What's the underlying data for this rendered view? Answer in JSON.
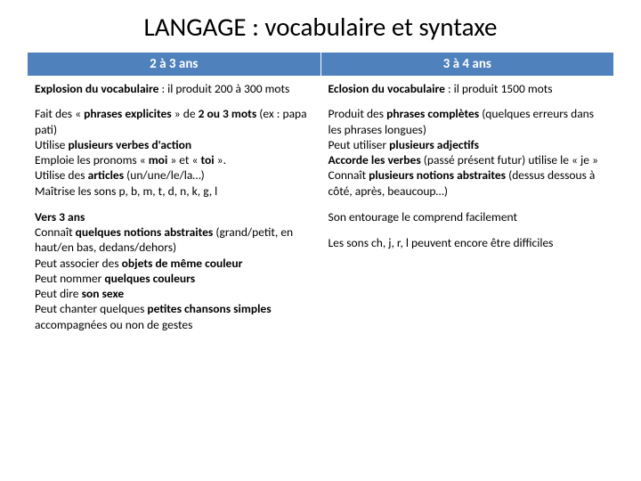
{
  "title": "LANGAGE : vocabulaire et syntaxe",
  "headers": {
    "col1": "2 à 3 ans",
    "col2": "3 à 4 ans"
  },
  "cells": {
    "r1c1_a": "Explosion du vocabulaire",
    "r1c1_b": " : il produit 200 à 300 mots",
    "r1c2_a": "Eclosion du vocabulaire",
    "r1c2_b": " : il produit 1500 mots",
    "r2c1_l1a": "Fait des « ",
    "r2c1_l1b": "phrases explicites",
    "r2c1_l1c": " » de ",
    "r2c1_l1d": "2 ou 3 mots",
    "r2c1_l1e": " (ex : papa pati)",
    "r2c1_l2a": "Utilise ",
    "r2c1_l2b": "plusieurs verbes d'action",
    "r2c1_l3a": "Emploie les pronoms « ",
    "r2c1_l3b": "moi",
    "r2c1_l3c": " » et « ",
    "r2c1_l3d": "toi",
    "r2c1_l3e": " ».",
    "r2c1_l4a": "Utilise des ",
    "r2c1_l4b": "articles",
    "r2c1_l4c": " (un/une/le/la…)",
    "r2c1_l5a": "Maîtrise les sons p, b, m, t, d, n, k, g, l",
    "r2c2_l1a": "Produit des ",
    "r2c2_l1b": "phrases complètes",
    "r2c2_l1c": " (quelques erreurs dans les phrases longues)",
    "r2c2_l2a": "Peut utiliser ",
    "r2c2_l2b": "plusieurs adjectifs",
    "r2c2_l3a": "Accorde les verbes",
    "r2c2_l3b": " (passé présent futur) utilise le « je »",
    "r2c2_l4a": "Connaît ",
    "r2c2_l4b": "plusieurs notions abstraites",
    "r2c2_l4c": " (dessus dessous à côté, après, beaucoup…)",
    "r3c1_h": "Vers 3 ans",
    "r3c1_l1a": "Connaît ",
    "r3c1_l1b": "quelques notions abstraites",
    "r3c1_l1c": " (grand/petit, en haut/en bas, dedans/dehors)",
    "r3c1_l2a": "Peut associer des ",
    "r3c1_l2b": "objets de même couleur",
    "r3c1_l3a": "Peut nommer ",
    "r3c1_l3b": "quelques couleurs",
    "r3c1_l4a": "Peut dire ",
    "r3c1_l4b": "son sexe",
    "r3c1_l5a": "Peut chanter quelques ",
    "r3c1_l5b": "petites chansons simples",
    "r3c1_l5c": " accompagnées ou non de gestes",
    "r3c2_l1": "Son entourage le comprend facilement",
    "r3c2_l2": "Les sons ch, j, r, l peuvent encore être difficiles"
  },
  "style": {
    "header_bg": "#4f81bd",
    "header_fg": "#ffffff",
    "cell_bg": "#ffffff",
    "cell_fg": "#000000",
    "title_fontsize": 29,
    "header_fontsize": 15,
    "body_fontsize": 13.5,
    "slide_width": 720,
    "slide_height": 540
  }
}
